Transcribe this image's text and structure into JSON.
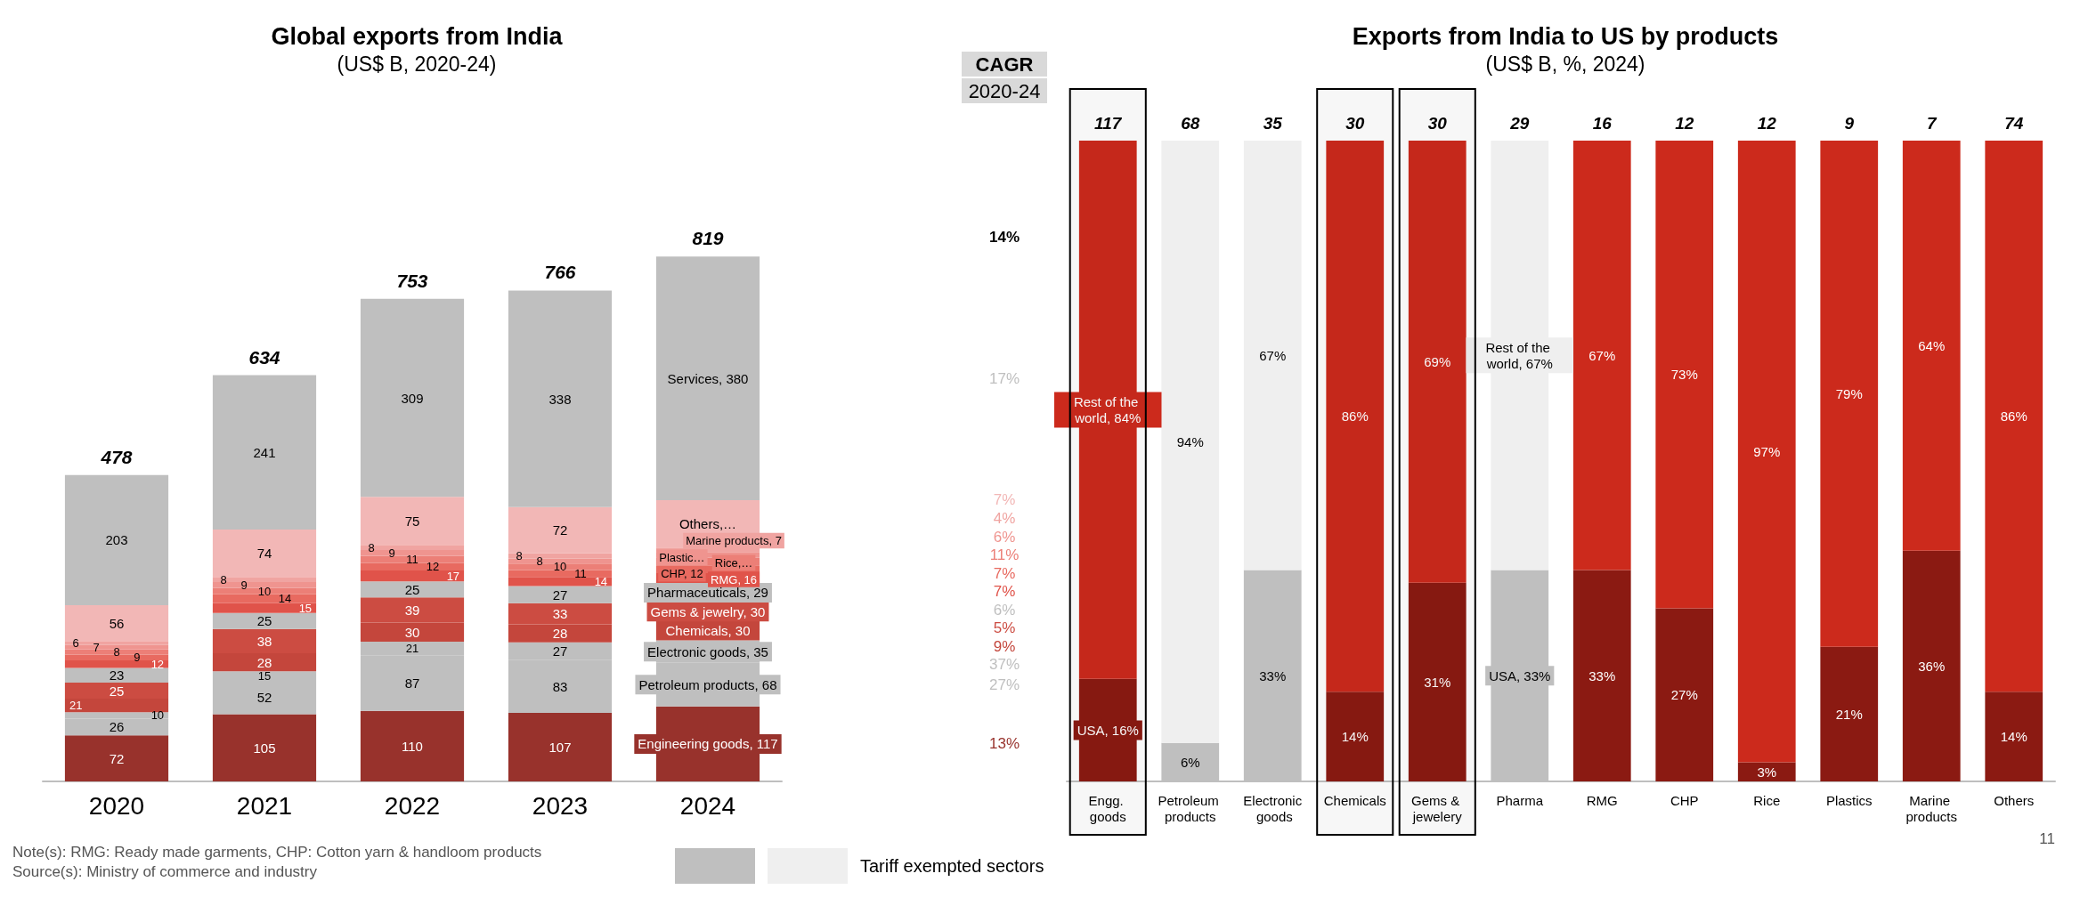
{
  "chart_data": [
    {
      "type": "bar",
      "title": "Global exports from India",
      "subtitle": "(US$ B, 2020-24)",
      "categories": [
        "2020",
        "2021",
        "2022",
        "2023",
        "2024"
      ],
      "stacked": true,
      "series": [
        {
          "color": "#98322c",
          "values": [
            72,
            105,
            110,
            107,
            117
          ],
          "value_labels": [
            "72",
            "105",
            "110",
            "107",
            "Engineering goods, 117"
          ]
        },
        {
          "color": "#bfbfbf",
          "values": [
            26,
            52,
            87,
            83,
            68
          ],
          "value_labels": [
            "26",
            "52",
            "87",
            "83",
            "Petroleum products, 68"
          ]
        },
        {
          "color": "#bfbfbf",
          "values": [
            10,
            15,
            21,
            27,
            35
          ],
          "value_labels": [
            "10",
            "15",
            "21",
            "27",
            "Electronic goods, 35"
          ]
        },
        {
          "color": "#c4463c",
          "values": [
            21,
            28,
            30,
            28,
            30
          ],
          "value_labels": [
            "21",
            "28",
            "30",
            "28",
            "Chemicals, 30"
          ]
        },
        {
          "color": "#cc4c42",
          "values": [
            25,
            38,
            39,
            33,
            30
          ],
          "value_labels": [
            "25",
            "38",
            "39",
            "33",
            "Gems & jewelry, 30"
          ]
        },
        {
          "color": "#bfbfbf",
          "values": [
            23,
            25,
            25,
            27,
            29
          ],
          "value_labels": [
            "23",
            "25",
            "25",
            "27",
            "Pharmaceuticals, 29"
          ]
        },
        {
          "color": "#e0534a",
          "values": [
            12,
            15,
            17,
            14,
            16
          ],
          "value_labels": [
            "12",
            "15",
            "17",
            "14",
            "RMG, 16"
          ]
        },
        {
          "color": "#e86a60",
          "values": [
            9,
            14,
            12,
            11,
            12
          ],
          "value_labels": [
            "9",
            "14",
            "12",
            "11",
            "CHP, 12"
          ]
        },
        {
          "color": "#ec7f77",
          "values": [
            8,
            10,
            11,
            10,
            12
          ],
          "value_labels": [
            "8",
            "10",
            "11",
            "10",
            "Rice,…"
          ]
        },
        {
          "color": "#ef948f",
          "values": [
            7,
            9,
            9,
            8,
            9
          ],
          "value_labels": [
            "7",
            "9",
            "9",
            "8",
            "Plastic…"
          ]
        },
        {
          "color": "#f0a4a1",
          "values": [
            6,
            8,
            8,
            8,
            7
          ],
          "value_labels": [
            "6",
            "8",
            "8",
            "8",
            "Marine products, 7"
          ]
        },
        {
          "color": "#f2b7b6",
          "values": [
            56,
            74,
            75,
            72,
            74
          ],
          "value_labels": [
            "56",
            "74",
            "75",
            "72",
            "Others,…"
          ]
        },
        {
          "color": "#bfbfbf",
          "values": [
            203,
            241,
            309,
            338,
            380
          ],
          "value_labels": [
            "203",
            "241",
            "309",
            "338",
            "Services, 380"
          ]
        }
      ],
      "totals": [
        "478",
        "634",
        "753",
        "766",
        "819"
      ],
      "annotations": [
        "CAGR",
        "2020-24",
        "14%",
        "17%",
        "7%",
        "4%",
        "6%",
        "11%",
        "7%",
        "7%",
        "6%",
        "5%",
        "9%",
        "37%",
        "27%",
        "13%",
        "Note(s): RMG: Ready made garments, CHP: Cotton yarn & handloom products",
        "Source(s): Ministry of commerce and industry"
      ]
    },
    {
      "type": "bar",
      "title": "Exports from India to US by products",
      "subtitle": "(US$ B, %, 2024)",
      "categories": [
        "Engg. goods",
        "Petroleum products",
        "Electronic goods",
        "Chemicals",
        "Gems & jewelery",
        "Pharma",
        "RMG",
        "CHP",
        "Rice",
        "Plastics",
        "Marine products",
        "Others"
      ],
      "stacked": true,
      "series": [
        {
          "colors": [
            "#8b1a12",
            "#bfbfbf",
            "#bfbfbf",
            "#8b1a12",
            "#8b1a12",
            "#bfbfbf",
            "#8b1a12",
            "#8b1a12",
            "#8b1a12",
            "#8b1a12",
            "#8b1a12",
            "#8b1a12"
          ],
          "values": [
            16,
            6,
            33,
            14,
            31,
            33,
            33,
            27,
            3,
            21,
            36,
            14
          ],
          "value_labels": [
            "USA, 16%",
            "6%",
            "33%",
            "14%",
            "31%",
            "USA, 33%",
            "33%",
            "27%",
            "3%",
            "21%",
            "36%",
            "14%"
          ]
        },
        {
          "colors": [
            "#cc2a1c",
            "#efefef",
            "#efefef",
            "#cc2a1c",
            "#cc2a1c",
            "#efefef",
            "#cc2a1c",
            "#cc2a1c",
            "#cc2a1c",
            "#cc2a1c",
            "#cc2a1c",
            "#cc2a1c"
          ],
          "values": [
            84,
            94,
            67,
            86,
            69,
            67,
            67,
            73,
            97,
            79,
            64,
            86
          ],
          "value_labels": [
            "Rest of the world, 84%",
            "94%",
            "67%",
            "86%",
            "69%",
            "Rest of the world, 67%",
            "67%",
            "73%",
            "97%",
            "79%",
            "64%",
            "86%"
          ]
        }
      ],
      "bands": [
        {
          "axis": "x",
          "from": "Engg. goods",
          "to": "Engg. goods",
          "color": "#000000"
        },
        {
          "axis": "x",
          "from": "Chemicals",
          "to": "Chemicals",
          "color": "#000000"
        },
        {
          "axis": "x",
          "from": "Gems & jewelery",
          "to": "Gems & jewelery",
          "color": "#000000"
        }
      ],
      "annotations": [
        {
          "text": "117",
          "x": "Engg. goods",
          "y": 100
        },
        {
          "text": "68",
          "x": "Petroleum products",
          "y": 100
        },
        {
          "text": "35",
          "x": "Electronic goods",
          "y": 100
        },
        {
          "text": "30",
          "x": "Chemicals",
          "y": 100
        },
        {
          "text": "30",
          "x": "Gems & jewelery",
          "y": 100
        },
        {
          "text": "29",
          "x": "Pharma",
          "y": 100
        },
        {
          "text": "16",
          "x": "RMG",
          "y": 100
        },
        {
          "text": "12",
          "x": "CHP",
          "y": 100
        },
        {
          "text": "12",
          "x": "Rice",
          "y": 100
        },
        {
          "text": "9",
          "x": "Plastics",
          "y": 100
        },
        {
          "text": "7",
          "x": "Marine products",
          "y": 100
        },
        {
          "text": "74",
          "x": "Others",
          "y": 100
        },
        "Tariff exempted sectors",
        "11"
      ]
    }
  ]
}
